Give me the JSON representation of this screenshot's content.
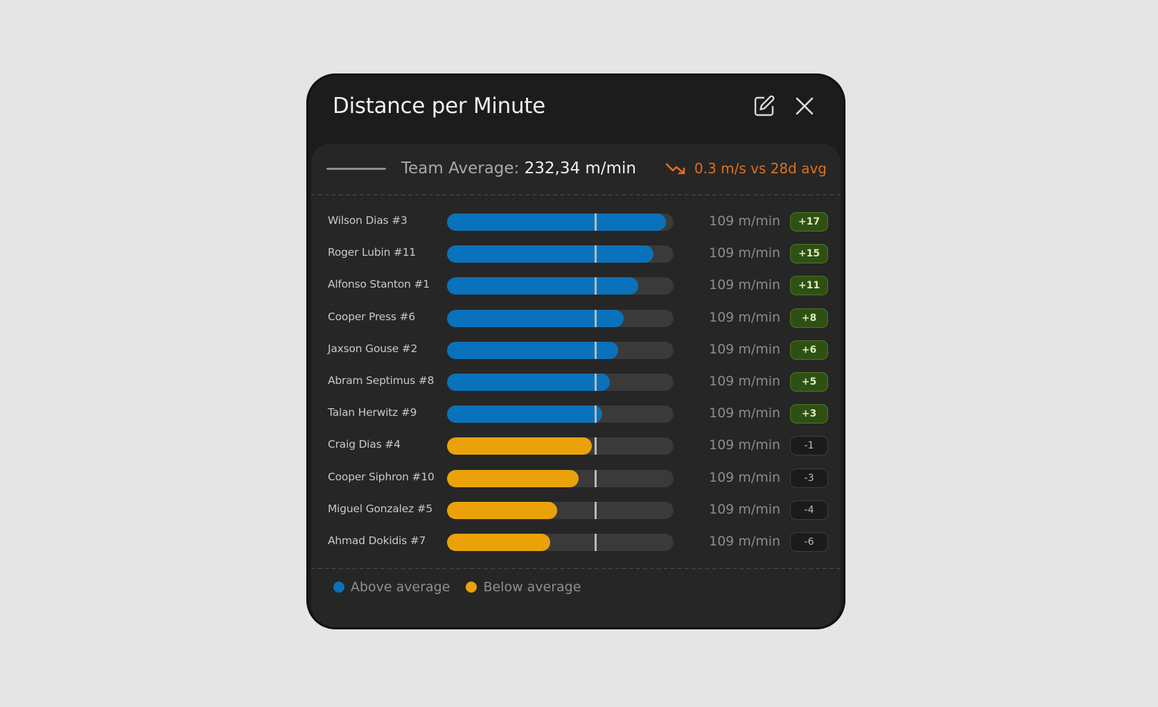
{
  "card": {
    "title": "Distance per Minute",
    "edit_icon": "edit-icon",
    "close_icon": "close-icon"
  },
  "summary": {
    "team_average_label": "Team Average:",
    "team_average_value": "232,34 m/min",
    "trend_icon": "trend-down-icon",
    "trend_text": "0.3 m/s vs 28d avg",
    "trend_color": "#e0701c"
  },
  "colors": {
    "above": "#0a72ba",
    "below": "#eaa20a",
    "badge_positive_bg": "#2f5014",
    "badge_negative_bg": "#1b1b1b"
  },
  "average_marker_fraction": 0.655,
  "players": [
    {
      "name": "Wilson Dias #3",
      "value": "109 m/min",
      "delta": "+17",
      "status": "above",
      "fill_fraction": 0.965
    },
    {
      "name": "Roger Lubin #11",
      "value": "109 m/min",
      "delta": "+15",
      "status": "above",
      "fill_fraction": 0.91
    },
    {
      "name": "Alfonso Stanton #1",
      "value": "109 m/min",
      "delta": "+11",
      "status": "above",
      "fill_fraction": 0.845
    },
    {
      "name": "Cooper Press #6",
      "value": "109 m/min",
      "delta": "+8",
      "status": "above",
      "fill_fraction": 0.78
    },
    {
      "name": "Jaxson Gouse #2",
      "value": "109 m/min",
      "delta": "+6",
      "status": "above",
      "fill_fraction": 0.755
    },
    {
      "name": "Abram Septimus #8",
      "value": "109 m/min",
      "delta": "+5",
      "status": "above",
      "fill_fraction": 0.72
    },
    {
      "name": "Talan Herwitz #9",
      "value": "109 m/min",
      "delta": "+3",
      "status": "above",
      "fill_fraction": 0.685
    },
    {
      "name": "Craig Dias #4",
      "value": "109 m/min",
      "delta": "-1",
      "status": "below",
      "fill_fraction": 0.64
    },
    {
      "name": "Cooper Siphron #10",
      "value": "109 m/min",
      "delta": "-3",
      "status": "below",
      "fill_fraction": 0.58
    },
    {
      "name": "Miguel Gonzalez #5",
      "value": "109 m/min",
      "delta": "-4",
      "status": "below",
      "fill_fraction": 0.485
    },
    {
      "name": "Ahmad Dokidis #7",
      "value": "109 m/min",
      "delta": "-6",
      "status": "below",
      "fill_fraction": 0.455
    }
  ],
  "legend": [
    {
      "label": "Above average",
      "status": "above"
    },
    {
      "label": "Below average",
      "status": "below"
    }
  ]
}
